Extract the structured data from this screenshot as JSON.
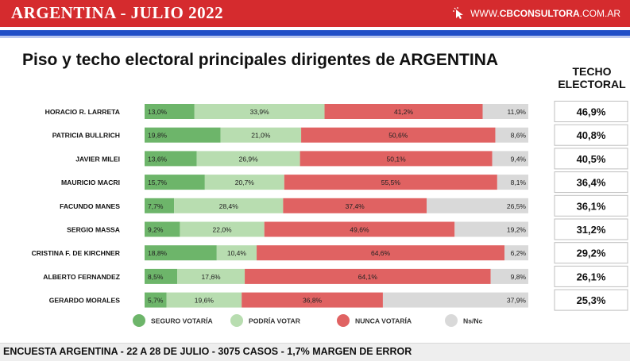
{
  "header": {
    "title": "ARGENTINA - JULIO 2022",
    "brand_prefix": "WWW.",
    "brand_bold": "CBCONSULTORA",
    "brand_suffix": ".COM.AR",
    "brand_icon": "cursor-click-icon"
  },
  "chart_data": {
    "type": "bar",
    "stacked": true,
    "orientation": "horizontal",
    "title": "Piso y techo electoral principales dirigentes de ARGENTINA",
    "categories": [
      "HORACIO R. LARRETA",
      "PATRICIA BULLRICH",
      "JAVIER MILEI",
      "MAURICIO MACRI",
      "FACUNDO MANES",
      "SERGIO MASSA",
      "CRISTINA F. DE KIRCHNER",
      "ALBERTO FERNANDEZ",
      "GERARDO MORALES"
    ],
    "series": [
      {
        "name": "SEGURO VOTARÍA",
        "color": "#6db56a",
        "values": [
          13.0,
          19.8,
          13.6,
          15.7,
          7.7,
          9.2,
          18.8,
          8.5,
          5.7
        ],
        "labels": [
          "13,0%",
          "19,8%",
          "13,6%",
          "15,7%",
          "7,7%",
          "9,2%",
          "18,8%",
          "8,5%",
          "5,7%"
        ]
      },
      {
        "name": "PODRÍA VOTAR",
        "color": "#b8ddb0",
        "values": [
          33.9,
          21.0,
          26.9,
          20.7,
          28.4,
          22.0,
          10.4,
          17.6,
          19.6
        ],
        "labels": [
          "33,9%",
          "21,0%",
          "26,9%",
          "20,7%",
          "28,4%",
          "22,0%",
          "10,4%",
          "17,6%",
          "19,6%"
        ]
      },
      {
        "name": "NUNCA VOTARÍA",
        "color": "#e06262",
        "values": [
          41.2,
          50.6,
          50.1,
          55.5,
          37.4,
          49.6,
          64.6,
          64.1,
          36.8
        ],
        "labels": [
          "41,2%",
          "50,6%",
          "50,1%",
          "55,5%",
          "37,4%",
          "49,6%",
          "64,6%",
          "64,1%",
          "36,8%"
        ]
      },
      {
        "name": "Ns/Nc",
        "color": "#d9d9d9",
        "values": [
          11.9,
          8.6,
          9.4,
          8.1,
          26.5,
          19.2,
          6.2,
          9.8,
          37.9
        ],
        "labels": [
          "11,9%",
          "8,6%",
          "9,4%",
          "8,1%",
          "26,5%",
          "19,2%",
          "6,2%",
          "9,8%",
          "37,9%"
        ]
      }
    ],
    "techo_header": [
      "TECHO",
      "ELECTORAL"
    ],
    "techo_values": [
      "46,9%",
      "40,8%",
      "40,5%",
      "36,4%",
      "36,1%",
      "31,2%",
      "29,2%",
      "26,1%",
      "25,3%"
    ],
    "legend_position": "bottom",
    "xlim": [
      0,
      100
    ],
    "grid": false
  },
  "footer": {
    "text": "ENCUESTA ARGENTINA - 22 A 28  DE JULIO - 3075 CASOS - 1,7% MARGEN DE ERROR"
  }
}
